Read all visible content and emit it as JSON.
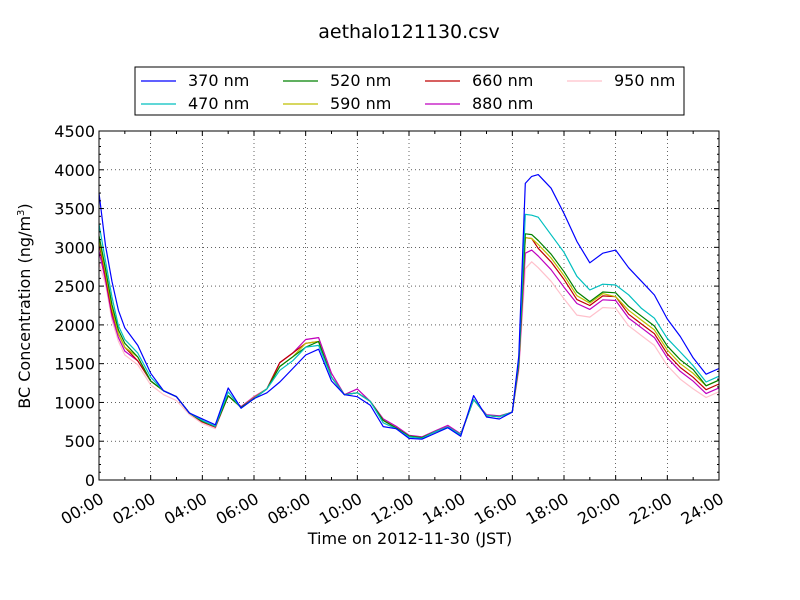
{
  "chart_data": {
    "type": "line",
    "title": "aethalo121130.csv",
    "xlabel": "Time on 2012-11-30 (JST)",
    "ylabel": "BC Concentration (ng/m³)",
    "ylabel_main": "BC Concentration (ng/m",
    "ylabel_sup": "3",
    "ylabel_close": ")",
    "xlim": [
      "00:00",
      "24:00"
    ],
    "ylim": [
      0,
      4500
    ],
    "xticks": [
      "00:00",
      "02:00",
      "04:00",
      "06:00",
      "08:00",
      "10:00",
      "12:00",
      "14:00",
      "16:00",
      "18:00",
      "20:00",
      "22:00",
      "24:00"
    ],
    "yticks": [
      0,
      500,
      1000,
      1500,
      2000,
      2500,
      3000,
      3500,
      4000,
      4500
    ],
    "grid": true,
    "legend_position": "top, above plot",
    "x_hours": [
      0,
      0.25,
      0.5,
      0.75,
      1,
      1.5,
      2,
      2.5,
      3,
      3.5,
      4,
      4.5,
      5,
      5.5,
      6,
      6.5,
      7,
      7.5,
      8,
      8.5,
      9,
      9.5,
      10,
      10.5,
      11,
      11.5,
      12,
      12.5,
      13,
      13.5,
      14,
      14.5,
      15,
      15.5,
      16,
      16.25,
      16.5,
      16.75,
      17,
      17.5,
      18,
      18.5,
      19,
      19.5,
      20,
      20.5,
      21,
      21.5,
      22,
      22.5,
      23,
      23.5,
      24
    ],
    "series": [
      {
        "name": "370 nm",
        "color": "#0000ff",
        "values": [
          3700,
          3000,
          2600,
          2200,
          1950,
          1700,
          1400,
          1150,
          1050,
          900,
          800,
          700,
          1150,
          950,
          1050,
          1100,
          1300,
          1450,
          1600,
          1650,
          1300,
          1100,
          1050,
          1000,
          700,
          650,
          500,
          550,
          600,
          650,
          600,
          1100,
          800,
          750,
          900,
          1600,
          3800,
          3950,
          3950,
          3750,
          3400,
          3100,
          2800,
          2900,
          3000,
          2750,
          2550,
          2350,
          2100,
          1850,
          1550,
          1400,
          1450
        ]
      },
      {
        "name": "470 nm",
        "color": "#00bfbf",
        "values": [
          3300,
          2800,
          2400,
          2000,
          1800,
          1600,
          1350,
          1150,
          1050,
          900,
          780,
          680,
          1100,
          950,
          1050,
          1150,
          1450,
          1550,
          1700,
          1700,
          1350,
          1100,
          1100,
          1050,
          750,
          650,
          520,
          560,
          620,
          660,
          620,
          1050,
          820,
          780,
          900,
          1550,
          3400,
          3450,
          3400,
          3150,
          2900,
          2650,
          2450,
          2500,
          2550,
          2400,
          2200,
          2050,
          1850,
          1650,
          1450,
          1300,
          1350
        ]
      },
      {
        "name": "520 nm",
        "color": "#008000",
        "values": [
          3150,
          2700,
          2300,
          1950,
          1750,
          1550,
          1300,
          1150,
          1050,
          900,
          770,
          680,
          1050,
          960,
          1050,
          1150,
          1500,
          1600,
          1700,
          1750,
          1350,
          1100,
          1100,
          1050,
          780,
          660,
          530,
          570,
          620,
          660,
          620,
          1050,
          820,
          780,
          900,
          1500,
          3150,
          3200,
          3100,
          2900,
          2650,
          2450,
          2300,
          2400,
          2450,
          2250,
          2100,
          1950,
          1750,
          1550,
          1400,
          1250,
          1300
        ]
      },
      {
        "name": "590 nm",
        "color": "#bfbf00",
        "values": [
          3100,
          2650,
          2250,
          1900,
          1700,
          1550,
          1300,
          1150,
          1050,
          900,
          770,
          680,
          1050,
          960,
          1060,
          1150,
          1500,
          1600,
          1750,
          1750,
          1350,
          1100,
          1100,
          1050,
          780,
          660,
          530,
          570,
          620,
          660,
          620,
          1050,
          820,
          780,
          900,
          1500,
          3100,
          3150,
          3050,
          2850,
          2600,
          2400,
          2280,
          2380,
          2400,
          2200,
          2050,
          1900,
          1700,
          1500,
          1350,
          1250,
          1300
        ]
      },
      {
        "name": "660 nm",
        "color": "#bf0000",
        "values": [
          3050,
          2600,
          2200,
          1900,
          1700,
          1500,
          1300,
          1150,
          1050,
          900,
          760,
          670,
          1050,
          960,
          1060,
          1150,
          1550,
          1650,
          1750,
          1750,
          1350,
          1100,
          1100,
          1050,
          780,
          660,
          530,
          570,
          620,
          660,
          620,
          1050,
          820,
          780,
          900,
          1500,
          3100,
          3150,
          3000,
          2800,
          2550,
          2350,
          2250,
          2350,
          2400,
          2150,
          2000,
          1850,
          1650,
          1450,
          1300,
          1200,
          1250
        ]
      },
      {
        "name": "880 nm",
        "color": "#bf00bf",
        "values": [
          2950,
          2550,
          2150,
          1850,
          1650,
          1500,
          1300,
          1150,
          1050,
          900,
          760,
          670,
          1050,
          970,
          1070,
          1150,
          1550,
          1650,
          1800,
          1800,
          1400,
          1100,
          1150,
          1050,
          800,
          680,
          540,
          580,
          630,
          680,
          630,
          1050,
          830,
          790,
          900,
          1450,
          2900,
          3000,
          2900,
          2700,
          2450,
          2300,
          2200,
          2300,
          2350,
          2100,
          1950,
          1800,
          1600,
          1400,
          1250,
          1150,
          1200
        ]
      },
      {
        "name": "950 nm",
        "color": "#ffc0cb",
        "values": [
          2800,
          2500,
          2100,
          1800,
          1600,
          1450,
          1250,
          1100,
          1000,
          880,
          740,
          650,
          1050,
          970,
          1080,
          1150,
          1550,
          1650,
          1800,
          1800,
          1400,
          1100,
          1150,
          1050,
          800,
          680,
          540,
          580,
          630,
          680,
          630,
          1050,
          830,
          790,
          900,
          1400,
          2700,
          2850,
          2750,
          2550,
          2300,
          2150,
          2100,
          2200,
          2250,
          2000,
          1850,
          1700,
          1500,
          1300,
          1150,
          1100,
          1150
        ]
      }
    ]
  }
}
